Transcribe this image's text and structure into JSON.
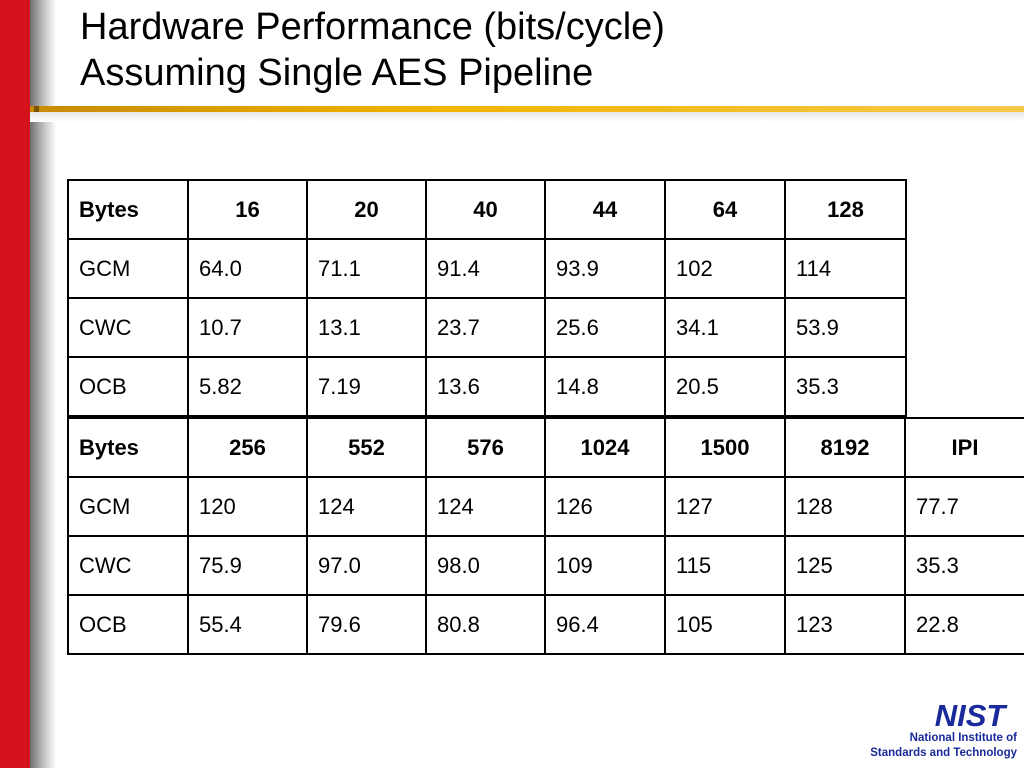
{
  "slide": {
    "title_line1": "Hardware Performance (bits/cycle)",
    "title_line2": "Assuming Single AES Pipeline"
  },
  "table_top": {
    "header": [
      "Bytes",
      "16",
      "20",
      "40",
      "44",
      "64",
      "128"
    ],
    "rows": [
      [
        "GCM",
        "64.0",
        "71.1",
        "91.4",
        "93.9",
        "102",
        "114"
      ],
      [
        "CWC",
        "10.7",
        "13.1",
        "23.7",
        "25.6",
        "34.1",
        "53.9"
      ],
      [
        "OCB",
        "5.82",
        "7.19",
        "13.6",
        "14.8",
        "20.5",
        "35.3"
      ]
    ]
  },
  "table_bottom": {
    "header": [
      "Bytes",
      "256",
      "552",
      "576",
      "1024",
      "1500",
      "8192",
      "IPI"
    ],
    "rows": [
      [
        "GCM",
        "120",
        "124",
        "124",
        "126",
        "127",
        "128",
        "77.7"
      ],
      [
        "CWC",
        "75.9",
        "97.0",
        "98.0",
        "109",
        "115",
        "125",
        "35.3"
      ],
      [
        "OCB",
        "55.4",
        "79.6",
        "80.8",
        "96.4",
        "105",
        "123",
        "22.8"
      ]
    ]
  },
  "logo": {
    "wordmark": "NIST",
    "line1": "National Institute of",
    "line2": "Standards and Technology"
  },
  "colors": {
    "left_bar": "#d4121e",
    "title_rule": "#f0b400",
    "logo_blue": "#1a2a9a"
  }
}
